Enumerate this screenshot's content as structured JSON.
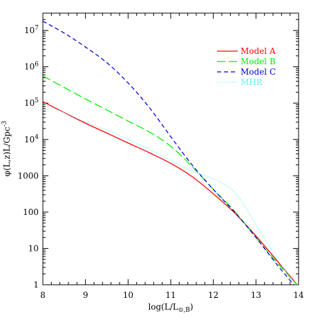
{
  "chart_data": {
    "type": "line",
    "xlabel": "log(L/L",
    "xlabel_sub": "⊙,B",
    "xlabel_close": ")",
    "ylabel": "φ(L,z)L/Gpc",
    "ylabel_sup": "-3",
    "xlim": [
      8,
      14
    ],
    "ylim": [
      1,
      30000000
    ],
    "y_scale": "log",
    "grid": false,
    "legend_position": "top-right",
    "x_ticks": [
      8,
      9,
      10,
      11,
      12,
      13,
      14
    ],
    "x_tick_labels": [
      "8",
      "9",
      "10",
      "11",
      "12",
      "13",
      "14"
    ],
    "y_ticks": [
      1,
      10,
      100,
      1000,
      10000,
      100000,
      1000000,
      10000000
    ],
    "y_tick_labels": [
      {
        "base": "1",
        "exp": ""
      },
      {
        "base": "10",
        "exp": ""
      },
      {
        "base": "100",
        "exp": ""
      },
      {
        "base": "1000",
        "exp": ""
      },
      {
        "base": "10",
        "exp": "4"
      },
      {
        "base": "10",
        "exp": "5"
      },
      {
        "base": "10",
        "exp": "6"
      },
      {
        "base": "10",
        "exp": "7"
      }
    ],
    "series": [
      {
        "name": "Model A",
        "color": "#ff0000",
        "dash": "solid",
        "x": [
          8,
          8.5,
          9,
          9.5,
          10,
          10.5,
          11,
          11.5,
          12,
          12.5,
          13,
          13.5,
          14
        ],
        "y": [
          110000,
          55000,
          28000,
          15000,
          8000,
          4300,
          2200,
          950,
          320,
          95,
          22,
          4.5,
          0.9
        ]
      },
      {
        "name": "Model B",
        "color": "#00ee00",
        "dash": "long-dash",
        "x": [
          8,
          8.5,
          9,
          9.5,
          10,
          10.5,
          11,
          11.5,
          12,
          12.5,
          13,
          13.5,
          14
        ],
        "y": [
          560000,
          270000,
          130000,
          65000,
          32000,
          16000,
          6500,
          1800,
          420,
          105,
          20,
          4,
          0.9
        ]
      },
      {
        "name": "Model C",
        "color": "#0000dd",
        "dash": "short-dash",
        "x": [
          8,
          8.5,
          9,
          9.5,
          10,
          10.5,
          11,
          11.5,
          12,
          12.5,
          13,
          13.5,
          14
        ],
        "y": [
          18000000,
          8500000,
          3500000,
          1300000,
          360000,
          75000,
          12000,
          2000,
          420,
          100,
          20,
          3.5,
          0.7
        ]
      },
      {
        "name": "MHR",
        "color": "#66eeee",
        "dash": "dotted",
        "x": [
          8,
          8.5,
          9,
          9.5,
          10,
          10.5,
          11,
          11.5,
          12,
          12.5,
          13,
          13.5,
          14
        ],
        "y": [
          95000,
          55000,
          30000,
          18000,
          10000,
          5300,
          2600,
          1350,
          820,
          350,
          45,
          5,
          0.8
        ]
      }
    ]
  }
}
